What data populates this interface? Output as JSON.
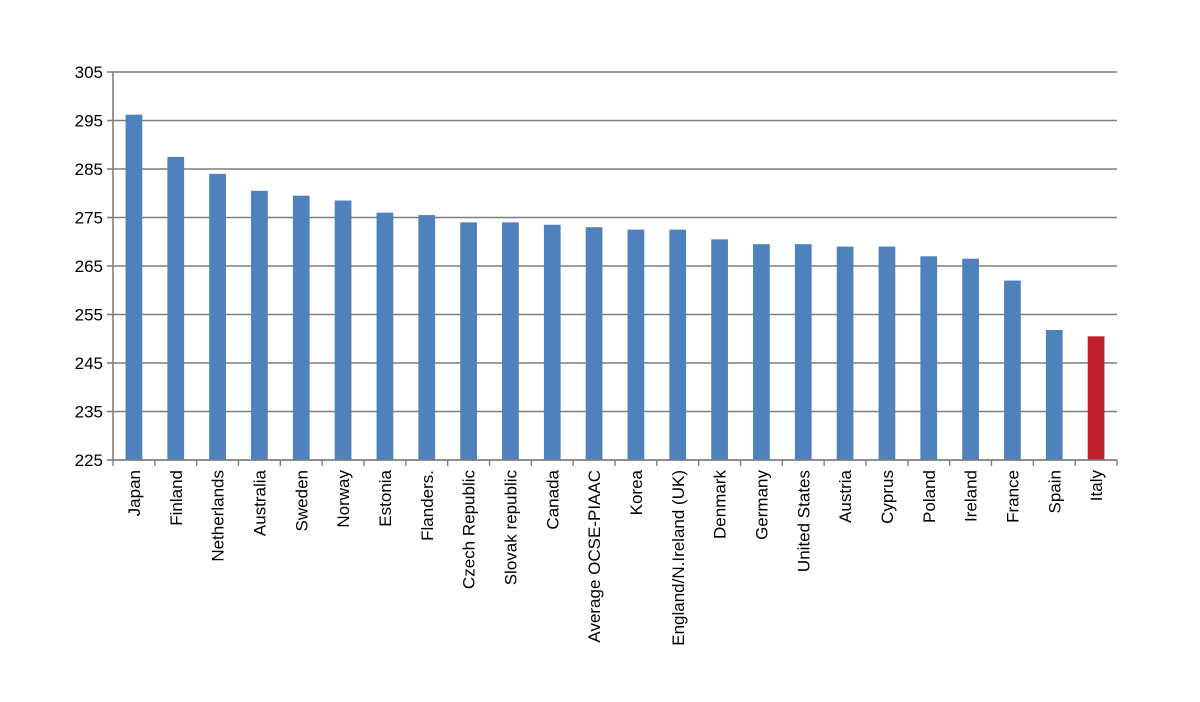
{
  "chart_data": {
    "type": "bar",
    "title": "",
    "xlabel": "",
    "ylabel": "",
    "ylim": [
      225,
      305
    ],
    "yticks": [
      225,
      235,
      245,
      255,
      265,
      275,
      285,
      295,
      305
    ],
    "grid": true,
    "legend": "none",
    "categories": [
      "Japan",
      "Finland",
      "Netherlands",
      "Australia",
      "Sweden",
      "Norway",
      "Estonia",
      "Flanders.",
      "Czech Republic",
      "Slovak republic",
      "Canada",
      "Average OCSE-PIAAC",
      "Korea",
      "England/N.Ireland (UK)",
      "Denmark",
      "Germany",
      "United States",
      "Austria",
      "Cyprus",
      "Poland",
      "Ireland",
      "France",
      "Spain",
      "Italy"
    ],
    "series": [
      {
        "values": [
          296.2,
          287.5,
          284.0,
          280.5,
          279.5,
          278.5,
          276.0,
          275.5,
          274.0,
          274.0,
          273.5,
          273.0,
          272.5,
          272.5,
          270.5,
          269.5,
          269.5,
          269.0,
          269.0,
          267.0,
          266.5,
          262.0,
          251.8,
          250.5
        ]
      }
    ],
    "colors": {
      "bar": "#4f81bd",
      "highlight": "#c0202a",
      "grid": "#7f7f7f",
      "axis": "#7f7f7f"
    },
    "highlight_category": "Italy"
  }
}
